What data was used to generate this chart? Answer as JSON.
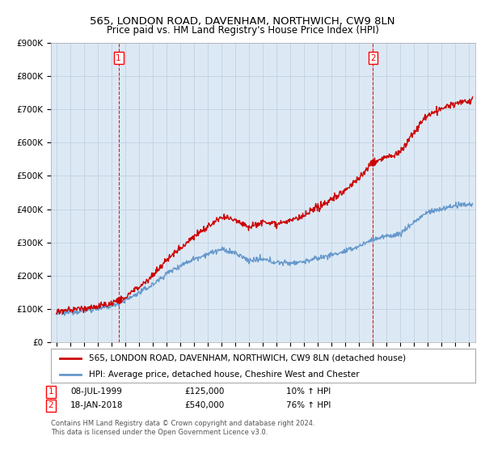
{
  "title": "565, LONDON ROAD, DAVENHAM, NORTHWICH, CW9 8LN",
  "subtitle": "Price paid vs. HM Land Registry's House Price Index (HPI)",
  "legend_property": "565, LONDON ROAD, DAVENHAM, NORTHWICH, CW9 8LN (detached house)",
  "legend_hpi": "HPI: Average price, detached house, Cheshire West and Chester",
  "footnote": "Contains HM Land Registry data © Crown copyright and database right 2024.\nThis data is licensed under the Open Government Licence v3.0.",
  "sale1_date": "08-JUL-1999",
  "sale1_price": "£125,000",
  "sale1_hpi": "10% ↑ HPI",
  "sale1_year": 1999.52,
  "sale1_value": 125000,
  "sale2_date": "18-JAN-2018",
  "sale2_price": "£540,000",
  "sale2_hpi": "76% ↑ HPI",
  "sale2_year": 2018.05,
  "sale2_value": 540000,
  "property_color": "#cc0000",
  "hpi_color": "#6699cc",
  "dashed_line_color": "#cc0000",
  "chart_bg": "#dce9f5",
  "ylim": [
    0,
    900000
  ],
  "yticks": [
    0,
    100000,
    200000,
    300000,
    400000,
    500000,
    600000,
    700000,
    800000,
    900000
  ],
  "ytick_labels": [
    "£0",
    "£100K",
    "£200K",
    "£300K",
    "£400K",
    "£500K",
    "£600K",
    "£700K",
    "£800K",
    "£900K"
  ],
  "xlim_start": 1994.6,
  "xlim_end": 2025.5,
  "background_color": "#ffffff",
  "grid_color": "#bbccdd"
}
